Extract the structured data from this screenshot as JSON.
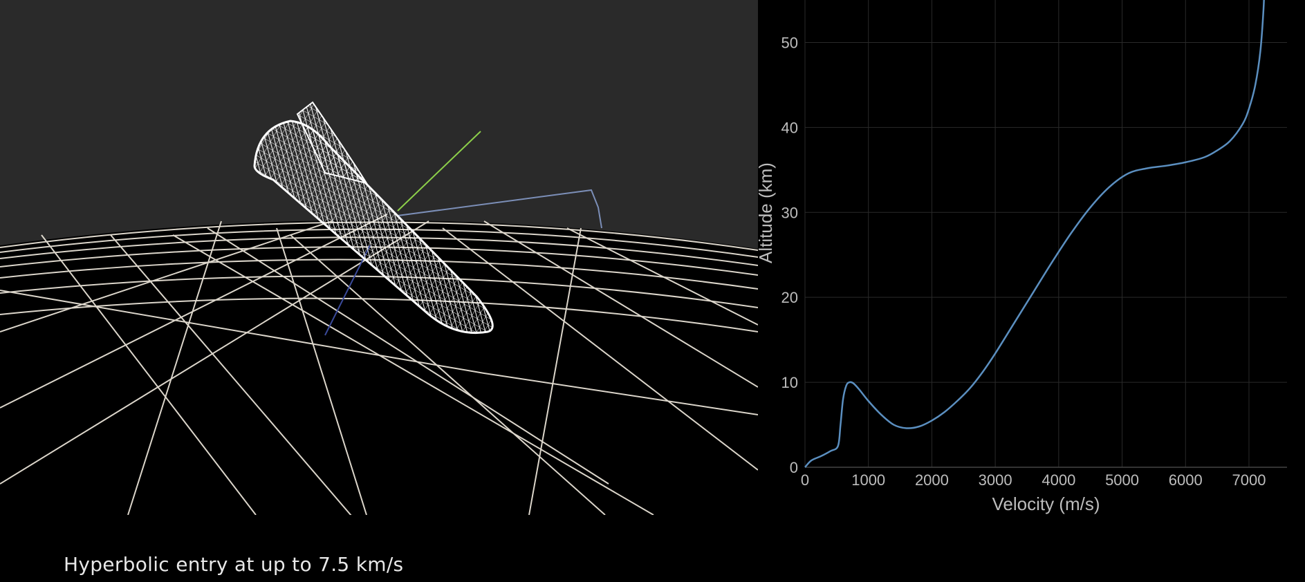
{
  "caption": "Hyperbolic entry at up to 7.5 km/s",
  "scene": {
    "background": "#2a2a2a",
    "ground_color": "#000000",
    "grid_color": "#e8e2d6",
    "vehicle_color": "#ffffff",
    "axis_colors": {
      "x": "#7c8fb8",
      "y": "#8dd04a",
      "z": "#3a4a9a"
    }
  },
  "chart_data": {
    "type": "line",
    "xlabel": "Velocity (m/s)",
    "ylabel": "Altitude (km)",
    "xlim": [
      0,
      7600
    ],
    "ylim": [
      0,
      55
    ],
    "xticks": [
      "0",
      "1000",
      "2000",
      "3000",
      "4000",
      "5000",
      "6000",
      "7000"
    ],
    "yticks": [
      "0",
      "10",
      "20",
      "30",
      "40",
      "50"
    ],
    "grid": true,
    "line_color": "#5b8fc0",
    "series": [
      {
        "x": [
          0,
          100,
          250,
          400,
          520,
          560,
          600,
          650,
          700,
          760,
          850,
          1000,
          1200,
          1400,
          1600,
          1800,
          2000,
          2200,
          2400,
          2600,
          2800,
          3000,
          3300,
          3600,
          3900,
          4200,
          4500,
          4800,
          5100,
          5400,
          5700,
          6000,
          6300,
          6500,
          6700,
          6900,
          7000,
          7100,
          7180,
          7230,
          7250
        ],
        "y": [
          0,
          0.8,
          1.3,
          1.9,
          2.5,
          5,
          8,
          9.6,
          10,
          9.9,
          9.2,
          7.8,
          6.2,
          5.0,
          4.6,
          4.8,
          5.5,
          6.5,
          7.8,
          9.3,
          11.2,
          13.4,
          17,
          20.6,
          24.2,
          27.6,
          30.6,
          33.0,
          34.6,
          35.2,
          35.5,
          35.9,
          36.5,
          37.3,
          38.4,
          40.4,
          42.2,
          45,
          49,
          54,
          58
        ]
      }
    ]
  }
}
